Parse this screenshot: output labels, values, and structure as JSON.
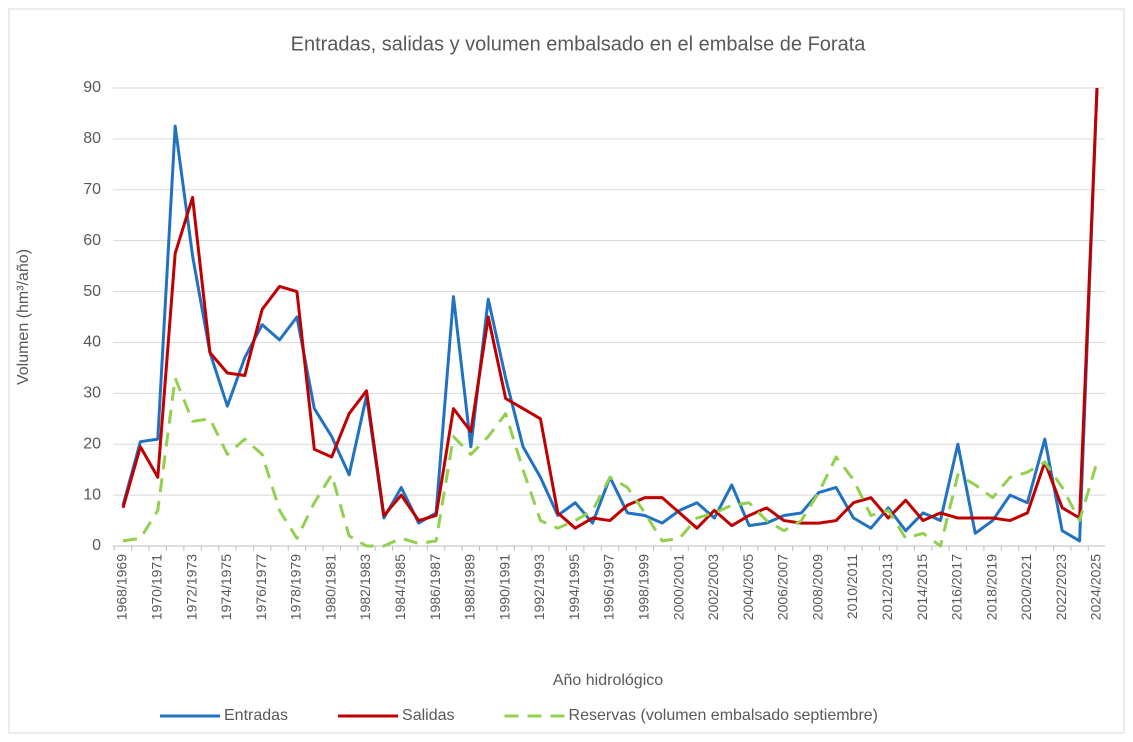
{
  "chart_data": {
    "type": "line",
    "title": "Entradas, salidas y volumen embalsado en el embalse de Forata",
    "xlabel": "Año hidrológico",
    "ylabel": "Volumen (hm³/año)",
    "categories": [
      "1968/1969",
      null,
      "1970/1971",
      null,
      "1972/1973",
      null,
      "1974/1975",
      null,
      "1976/1977",
      null,
      "1978/1979",
      null,
      "1980/1981",
      null,
      "1982/1983",
      null,
      "1984/1985",
      null,
      "1986/1987",
      null,
      "1988/1989",
      null,
      "1990/1991",
      null,
      "1992/1993",
      null,
      "1994/1995",
      null,
      "1996/1997",
      null,
      "1998/1999",
      null,
      "2000/2001",
      null,
      "2002/2003",
      null,
      "2004/2005",
      null,
      "2006/2007",
      null,
      "2008/2009",
      null,
      "2010/2011",
      null,
      "2012/2013",
      null,
      "2014/2015",
      null,
      "2016/2017",
      null,
      "2018/2019",
      null,
      "2020/2021",
      null,
      "2022/2023",
      null,
      "2024/2025"
    ],
    "series": [
      {
        "name": "Entradas",
        "color": "#2272c3",
        "dash": false,
        "values": [
          8,
          20.5,
          21,
          82.5,
          57,
          38,
          27.5,
          37,
          43.5,
          40.5,
          45,
          27,
          21.5,
          14,
          29.5,
          5.5,
          11.5,
          4.5,
          6.5,
          49,
          19.5,
          48.5,
          33,
          19.5,
          13.5,
          6,
          8.5,
          4.5,
          13.5,
          6.5,
          6,
          4.5,
          7,
          8.5,
          5.5,
          12,
          4,
          4.5,
          6,
          6.5,
          10.5,
          11.5,
          5.5,
          3.5,
          7.5,
          3,
          6.5,
          5,
          20,
          2.5,
          5,
          10,
          8.5,
          21,
          3,
          1,
          90
        ]
      },
      {
        "name": "Salidas",
        "color": "#c00000",
        "dash": false,
        "values": [
          7.5,
          19.5,
          13.5,
          57.5,
          68.5,
          38,
          34,
          33.5,
          46.5,
          51,
          50,
          19,
          17.5,
          26,
          30.5,
          6,
          10,
          5,
          6,
          27,
          22.5,
          45,
          29,
          27,
          25,
          6.5,
          3.5,
          5.5,
          5,
          8,
          9.5,
          9.5,
          6.5,
          3.5,
          7,
          4,
          6,
          7.5,
          5,
          4.5,
          4.5,
          5,
          8.5,
          9.5,
          5.5,
          9,
          5,
          6.5,
          5.5,
          5.5,
          5.5,
          5,
          6.5,
          16.5,
          7.5,
          5.5,
          90
        ]
      },
      {
        "name": "Reservas (volumen embalsado septiembre)",
        "color": "#92d050",
        "dash": true,
        "values": [
          1,
          1.5,
          7,
          33,
          24.5,
          25,
          18,
          21,
          18,
          7,
          1.5,
          8.5,
          14,
          2,
          0,
          0,
          1.5,
          0.5,
          1,
          21.5,
          18,
          21.5,
          26,
          15,
          5,
          3.5,
          5,
          7,
          13.5,
          11.5,
          6.5,
          1,
          1.5,
          5.5,
          6.5,
          8,
          8.5,
          5,
          3,
          5,
          10.5,
          17.5,
          13,
          6,
          7,
          1.5,
          2.5,
          0,
          14,
          12,
          9.5,
          13.5,
          14.5,
          16.5,
          11.5,
          5,
          16.5
        ]
      }
    ],
    "ylim": [
      0,
      90
    ],
    "yticks": [
      0,
      10,
      20,
      30,
      40,
      50,
      60,
      70,
      80,
      90
    ],
    "grid": true,
    "legend": "bottom"
  }
}
